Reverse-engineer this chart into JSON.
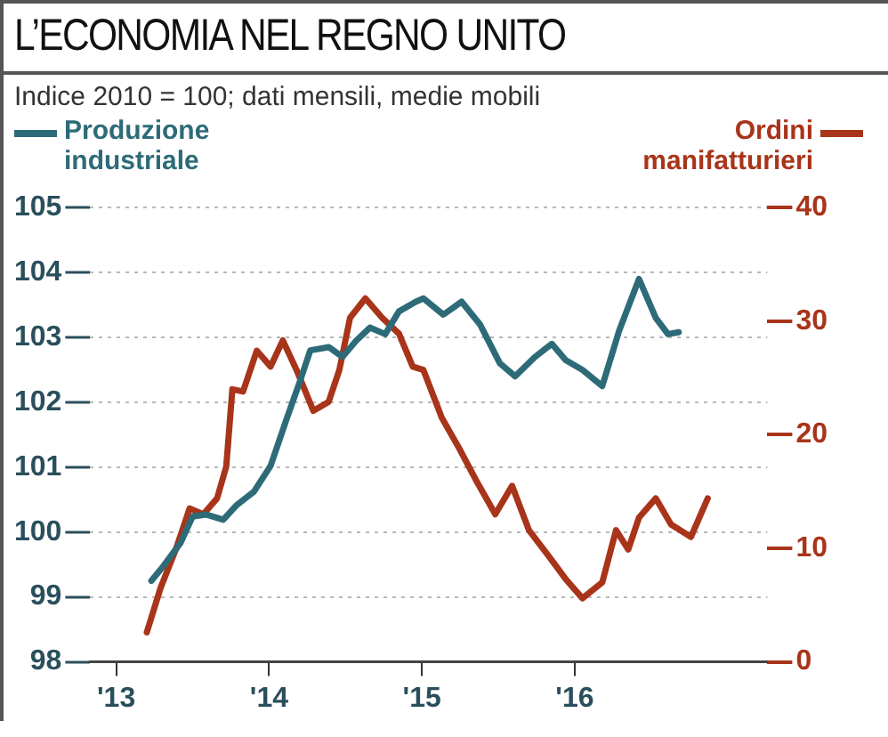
{
  "chart_data": {
    "type": "line",
    "title": "L’ECONOMIA NEL REGNO UNITO",
    "subtitle": "Indice 2010 = 100; dati mensili, medie mobili",
    "xlim": [
      2012.83,
      2017.26
    ],
    "xticks": [
      {
        "value": 2013,
        "label": "'13"
      },
      {
        "value": 2014,
        "label": "'14"
      },
      {
        "value": 2015,
        "label": "'15"
      },
      {
        "value": 2016,
        "label": "'16"
      }
    ],
    "ylim": [
      98,
      105
    ],
    "yticks": [
      98,
      99,
      100,
      101,
      102,
      103,
      104,
      105
    ],
    "y2lim": [
      0,
      40
    ],
    "y2ticks": [
      0,
      10,
      20,
      30,
      40
    ],
    "grid": "y",
    "legend": "top",
    "line_style": "solid",
    "marker": "none",
    "series": [
      {
        "name": "Produzione industriale",
        "color": "#2e6b78",
        "x": [
          2013.23,
          2013.31,
          2013.42,
          2013.5,
          2013.59,
          2013.7,
          2013.79,
          2013.9,
          2014.01,
          2014.11,
          2014.2,
          2014.27,
          2014.39,
          2014.48,
          2014.57,
          2014.66,
          2014.76,
          2014.85,
          2014.96,
          2015.01,
          2015.14,
          2015.26,
          2015.38,
          2015.51,
          2015.61,
          2015.74,
          2015.85,
          2015.94,
          2016.05,
          2016.18,
          2016.29,
          2016.42,
          2016.53,
          2016.61,
          2016.68
        ],
        "values": [
          99.25,
          99.48,
          99.83,
          100.24,
          100.27,
          100.19,
          100.42,
          100.62,
          101.02,
          101.71,
          102.31,
          102.8,
          102.85,
          102.7,
          102.95,
          103.15,
          103.05,
          103.4,
          103.55,
          103.6,
          103.35,
          103.55,
          103.2,
          102.6,
          102.4,
          102.7,
          102.9,
          102.65,
          102.5,
          102.25,
          103.1,
          103.9,
          103.3,
          103.05,
          103.08
        ]
      },
      {
        "name": "Ordini manifatturieri",
        "color": "#a8341a",
        "axis": "y2",
        "x": [
          2013.2,
          2013.29,
          2013.39,
          2013.48,
          2013.57,
          2013.66,
          2013.72,
          2013.76,
          2013.83,
          2013.92,
          2014.01,
          2014.09,
          2014.18,
          2014.29,
          2014.39,
          2014.46,
          2014.53,
          2014.63,
          2014.74,
          2014.85,
          2014.94,
          2015.01,
          2015.13,
          2015.24,
          2015.35,
          2015.48,
          2015.59,
          2015.7,
          2015.83,
          2015.94,
          2016.05,
          2016.18,
          2016.27,
          2016.35,
          2016.42,
          2016.53,
          2016.63,
          2016.76,
          2016.87
        ],
        "values": [
          2.6,
          6.5,
          9.9,
          13.5,
          13,
          14.4,
          17.2,
          24,
          23.8,
          27.4,
          26,
          28.3,
          25.7,
          22.1,
          22.9,
          25.7,
          30.3,
          32,
          30.3,
          28.9,
          26,
          25.7,
          21.5,
          18.9,
          16.1,
          13,
          15.5,
          11.6,
          9.3,
          7.3,
          5.6,
          7,
          11.6,
          9.9,
          12.7,
          14.4,
          12.1,
          11,
          14.4
        ]
      }
    ]
  }
}
